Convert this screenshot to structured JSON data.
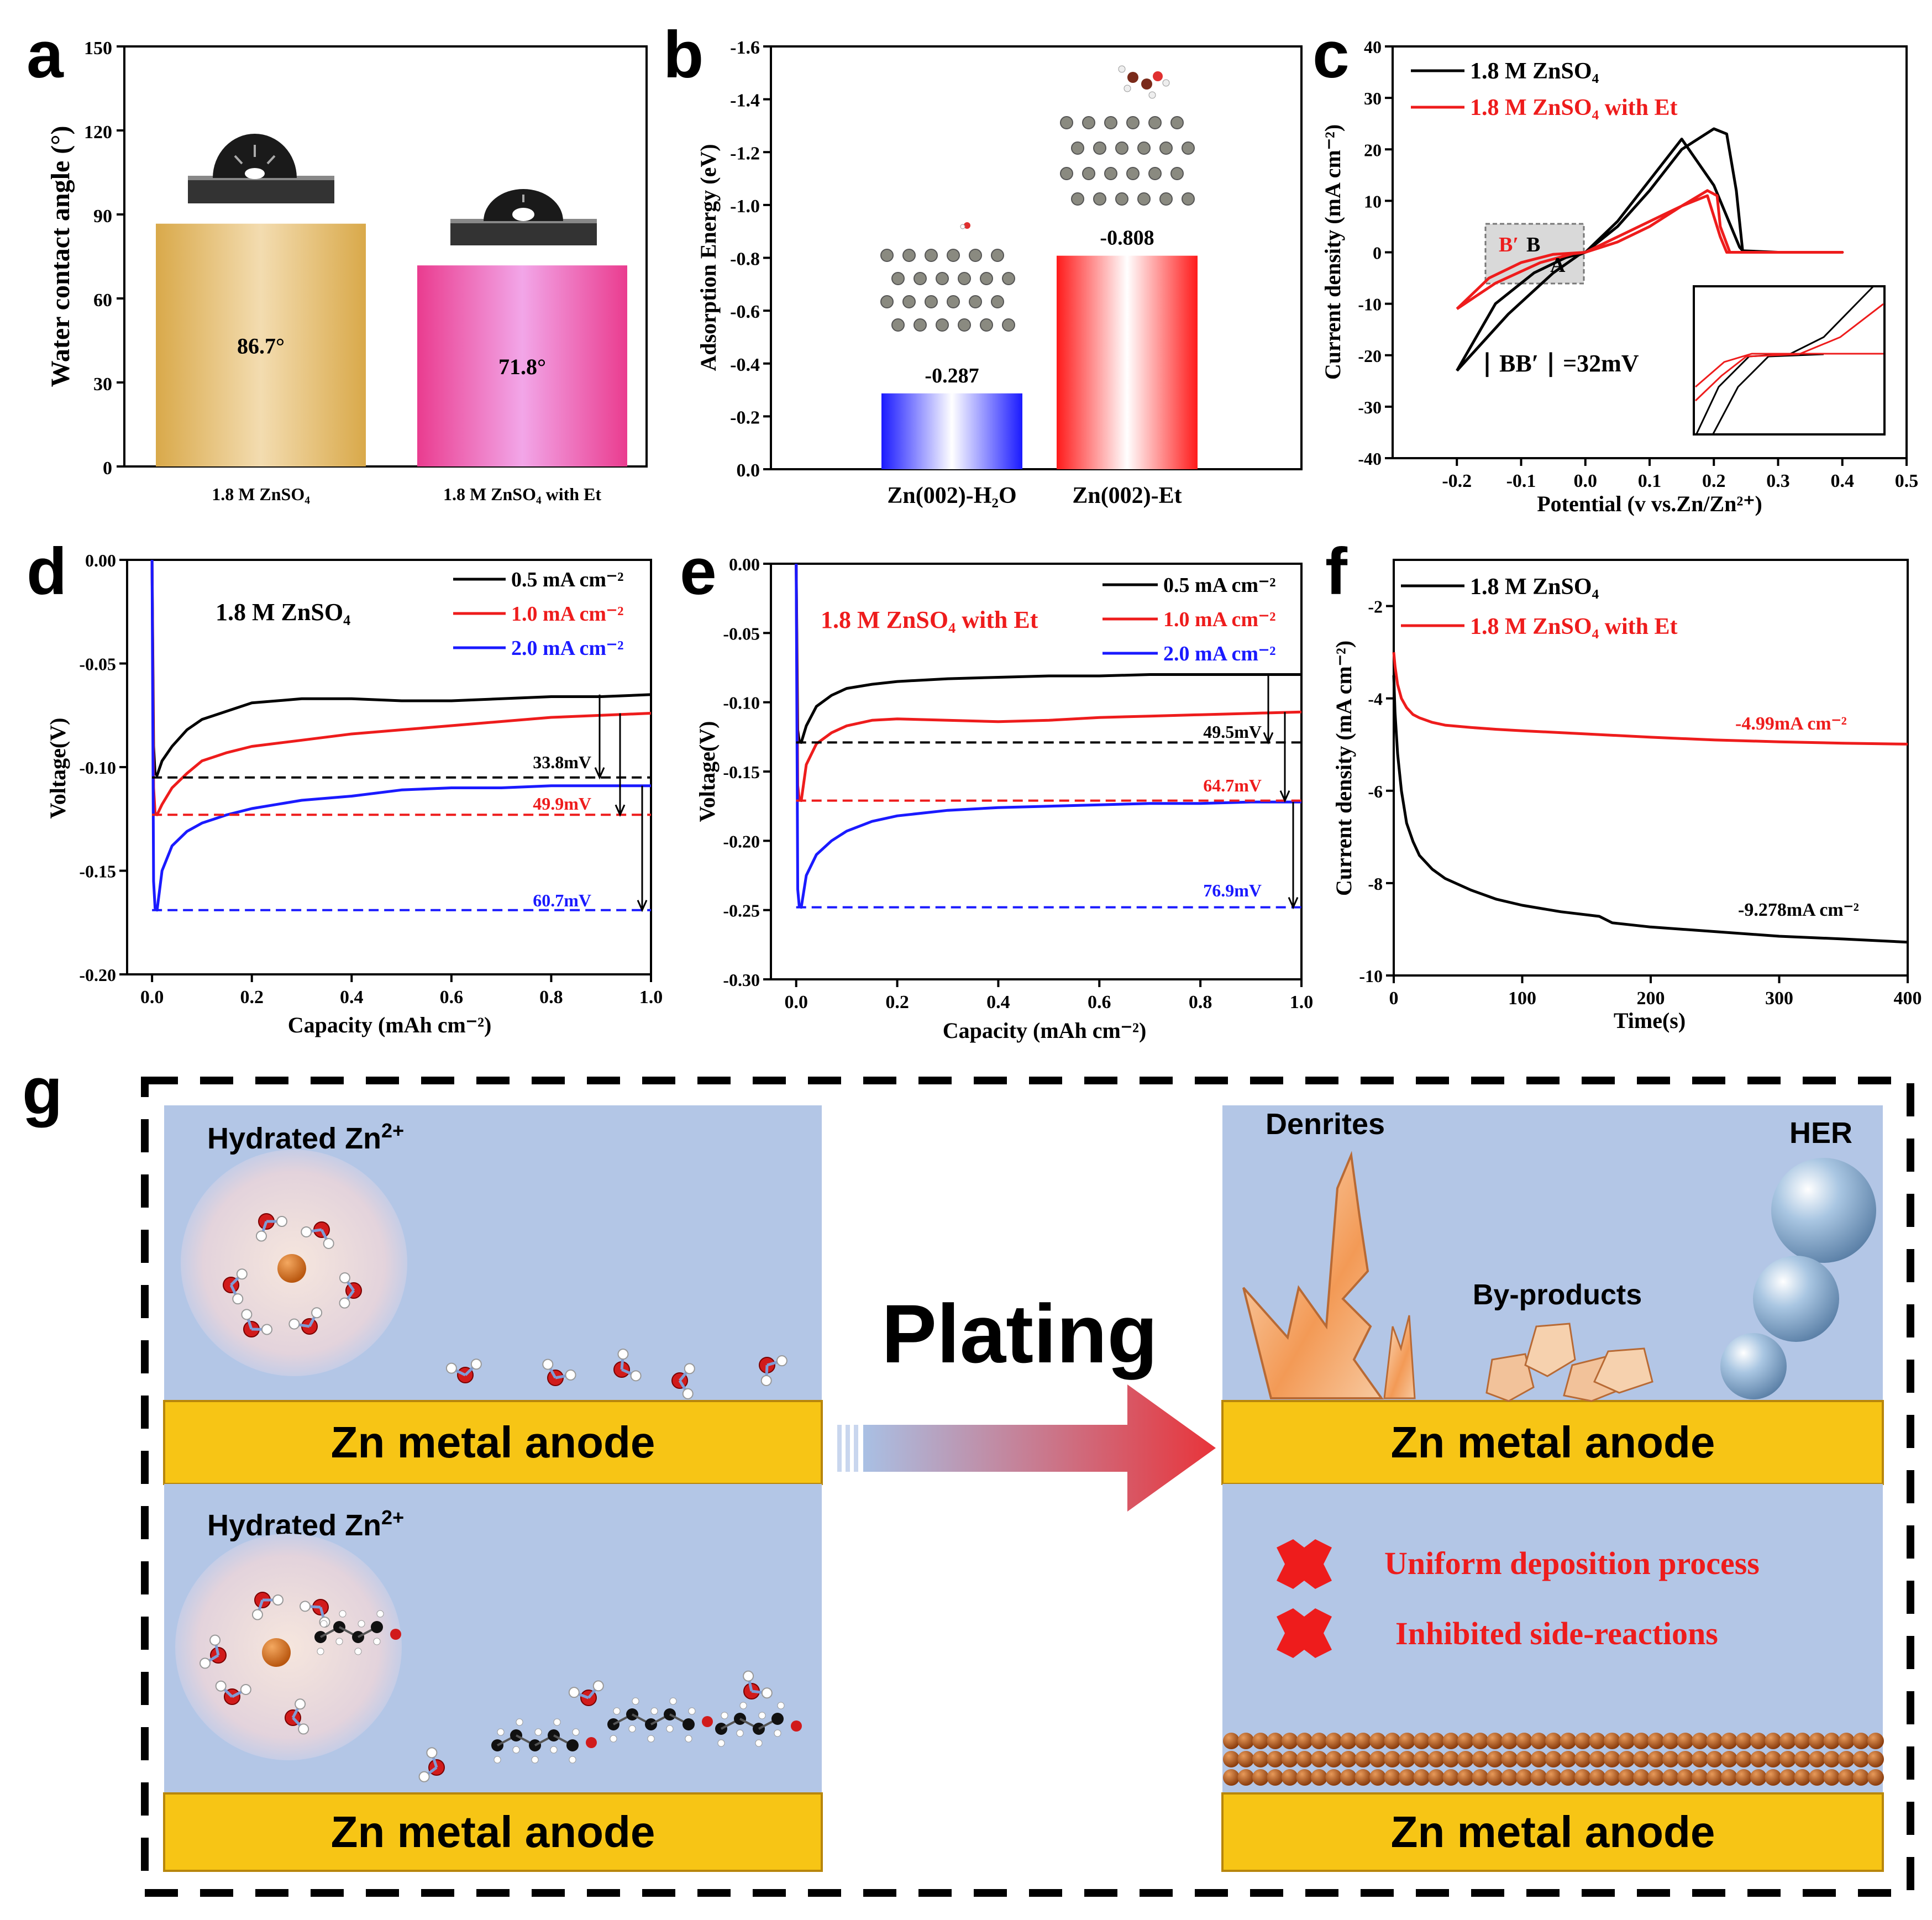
{
  "panel_letters": {
    "a": "a",
    "b": "b",
    "c": "c",
    "d": "d",
    "e": "e",
    "f": "f",
    "g": "g"
  },
  "colors": {
    "black": "#000000",
    "red": "#ee1c1c",
    "blue": "#1a1aff",
    "panel_bg": "#b3c6e6",
    "anode": "#f7c515",
    "gold": "#d9a94a",
    "pink": "#ea3c8f"
  },
  "chart_data": [
    {
      "id": "a",
      "type": "bar",
      "ylabel": "Water contact angle (°)",
      "ylim": [
        0,
        150
      ],
      "yticks": [
        0,
        30,
        60,
        90,
        120,
        150
      ],
      "categories": [
        "1.8 M ZnSO₄",
        "1.8 M ZnSO₄ with Et"
      ],
      "values": [
        86.7,
        71.8
      ],
      "value_labels": [
        "86.7°",
        "71.8°"
      ]
    },
    {
      "id": "b",
      "type": "bar",
      "ylabel": "Adsorption Energy (eV)",
      "ylim": [
        0,
        -1.6
      ],
      "yticks": [
        "0.0",
        "-0.2",
        "-0.4",
        "-0.6",
        "-0.8",
        "-1.0",
        "-1.2",
        "-1.4",
        "-1.6"
      ],
      "categories": [
        "Zn(002)-H₂O",
        "Zn(002)-Et"
      ],
      "values": [
        -0.287,
        -0.808
      ],
      "value_labels": [
        "-0.287",
        "-0.808"
      ]
    },
    {
      "id": "c",
      "type": "line",
      "xlabel": "Potential (v vs.Zn/Zn²⁺)",
      "ylabel": "Current density (mA cm⁻²)",
      "xlim": [
        -0.3,
        0.5
      ],
      "ylim": [
        -40,
        40
      ],
      "xticks": [
        "-0.2",
        "-0.1",
        "0.0",
        "0.1",
        "0.2",
        "0.3",
        "0.4",
        "0.5"
      ],
      "yticks": [
        "-40",
        "-30",
        "-20",
        "-10",
        "0",
        "10",
        "20",
        "30",
        "40"
      ],
      "annotation": "∣ BB′ ∣ =32mV",
      "point_labels": {
        "b_prime": "B′",
        "b": "B",
        "a": "A"
      },
      "series": [
        {
          "name": "1.8 M ZnSO₄",
          "color": "#000000",
          "x": [
            -0.2,
            -0.12,
            -0.05,
            -0.01,
            0.0,
            0.05,
            0.1,
            0.15,
            0.2,
            0.22,
            0.235,
            0.245,
            0.26,
            0.3,
            0.35,
            0.4,
            0.4,
            0.3,
            0.245,
            0.24,
            0.2,
            0.15,
            0.1,
            0.05,
            0.0,
            -0.03,
            -0.08,
            -0.14,
            -0.2
          ],
          "y": [
            -23,
            -12,
            -4,
            -0.5,
            0,
            5,
            12,
            20,
            24,
            23,
            12,
            0,
            0,
            0,
            0,
            0,
            0,
            0,
            0.3,
            1,
            13,
            22,
            14,
            6,
            0,
            -1,
            -4,
            -10,
            -23
          ]
        },
        {
          "name": "1.8 M ZnSO₄ with Et",
          "color": "#ee1c1c",
          "x": [
            -0.2,
            -0.14,
            -0.07,
            -0.02,
            0.0,
            0.05,
            0.1,
            0.15,
            0.19,
            0.205,
            0.21,
            0.225,
            0.3,
            0.4,
            0.4,
            0.3,
            0.22,
            0.21,
            0.19,
            0.15,
            0.1,
            0.05,
            0.0,
            -0.05,
            -0.1,
            -0.15,
            -0.2
          ],
          "y": [
            -11,
            -6,
            -2,
            -0.3,
            0,
            3,
            6,
            9,
            12,
            11,
            5,
            0,
            0,
            0,
            0,
            0,
            0,
            3,
            11,
            9,
            5,
            2,
            0,
            -0.4,
            -2,
            -5,
            -11
          ]
        }
      ]
    },
    {
      "id": "d",
      "type": "line",
      "xlabel": "Capacity (mAh cm⁻²)",
      "ylabel": "Voltage(V)",
      "xlim": [
        -0.05,
        1.0
      ],
      "ylim": [
        -0.2,
        0.0
      ],
      "xticks": [
        "0.0",
        "0.2",
        "0.4",
        "0.6",
        "0.8",
        "1.0"
      ],
      "yticks": [
        "0.00",
        "-0.05",
        "-0.10",
        "-0.15",
        "-0.20"
      ],
      "inset_label": "1.8 M ZnSO₄",
      "nucleation_labels": [
        "33.8mV",
        "49.9mV",
        "60.7mV"
      ],
      "nucleation_levels": [
        -0.105,
        -0.123,
        -0.169
      ],
      "series": [
        {
          "name": "0.5 mA cm⁻²",
          "color": "#000000",
          "x": [
            0.0,
            0.003,
            0.006,
            0.01,
            0.02,
            0.04,
            0.07,
            0.1,
            0.15,
            0.2,
            0.3,
            0.4,
            0.5,
            0.6,
            0.7,
            0.8,
            0.9,
            1.0
          ],
          "y": [
            0.0,
            -0.09,
            -0.103,
            -0.104,
            -0.097,
            -0.09,
            -0.082,
            -0.077,
            -0.073,
            -0.069,
            -0.067,
            -0.067,
            -0.068,
            -0.068,
            -0.067,
            -0.066,
            -0.066,
            -0.065
          ]
        },
        {
          "name": "1.0 mA cm⁻²",
          "color": "#ee1c1c",
          "x": [
            0.0,
            0.003,
            0.006,
            0.01,
            0.02,
            0.04,
            0.07,
            0.1,
            0.15,
            0.2,
            0.3,
            0.4,
            0.5,
            0.6,
            0.7,
            0.8,
            0.9,
            1.0
          ],
          "y": [
            0.0,
            -0.11,
            -0.122,
            -0.123,
            -0.118,
            -0.11,
            -0.103,
            -0.097,
            -0.093,
            -0.09,
            -0.087,
            -0.084,
            -0.082,
            -0.08,
            -0.078,
            -0.076,
            -0.075,
            -0.074
          ]
        },
        {
          "name": "2.0 mA cm⁻²",
          "color": "#1a1aff",
          "x": [
            0.0,
            0.003,
            0.006,
            0.01,
            0.02,
            0.04,
            0.07,
            0.1,
            0.15,
            0.2,
            0.3,
            0.4,
            0.5,
            0.6,
            0.7,
            0.8,
            0.9,
            1.0
          ],
          "y": [
            0.0,
            -0.155,
            -0.168,
            -0.169,
            -0.15,
            -0.138,
            -0.131,
            -0.127,
            -0.123,
            -0.12,
            -0.116,
            -0.114,
            -0.111,
            -0.11,
            -0.11,
            -0.109,
            -0.109,
            -0.109
          ]
        }
      ]
    },
    {
      "id": "e",
      "type": "line",
      "xlabel": "Capacity (mAh cm⁻²)",
      "ylabel": "Voltage(V)",
      "xlim": [
        -0.05,
        1.0
      ],
      "ylim": [
        -0.3,
        0.0
      ],
      "xticks": [
        "0.0",
        "0.2",
        "0.4",
        "0.6",
        "0.8",
        "1.0"
      ],
      "yticks": [
        "0.00",
        "-0.05",
        "-0.10",
        "-0.15",
        "-0.20",
        "-0.25",
        "-0.30"
      ],
      "inset_label": "1.8 M ZnSO₄ with Et",
      "nucleation_labels": [
        "49.5mV",
        "64.7mV",
        "76.9mV"
      ],
      "nucleation_levels": [
        -0.129,
        -0.171,
        -0.248
      ],
      "series": [
        {
          "name": "0.5 mA cm⁻²",
          "color": "#000000",
          "x": [
            0.0,
            0.003,
            0.006,
            0.01,
            0.02,
            0.04,
            0.07,
            0.1,
            0.15,
            0.2,
            0.3,
            0.4,
            0.5,
            0.6,
            0.7,
            0.8,
            0.9,
            1.0
          ],
          "y": [
            0.0,
            -0.12,
            -0.128,
            -0.129,
            -0.117,
            -0.103,
            -0.095,
            -0.09,
            -0.087,
            -0.085,
            -0.083,
            -0.082,
            -0.081,
            -0.081,
            -0.08,
            -0.08,
            -0.08,
            -0.08
          ]
        },
        {
          "name": "1.0 mA cm⁻²",
          "color": "#ee1c1c",
          "x": [
            0.0,
            0.003,
            0.006,
            0.01,
            0.02,
            0.04,
            0.07,
            0.1,
            0.15,
            0.2,
            0.3,
            0.4,
            0.5,
            0.6,
            0.7,
            0.8,
            0.9,
            1.0
          ],
          "y": [
            0.0,
            -0.16,
            -0.17,
            -0.171,
            -0.145,
            -0.13,
            -0.122,
            -0.117,
            -0.113,
            -0.112,
            -0.113,
            -0.114,
            -0.113,
            -0.111,
            -0.11,
            -0.109,
            -0.108,
            -0.107
          ]
        },
        {
          "name": "2.0 mA cm⁻²",
          "color": "#1a1aff",
          "x": [
            0.0,
            0.003,
            0.006,
            0.01,
            0.02,
            0.04,
            0.07,
            0.1,
            0.15,
            0.2,
            0.3,
            0.4,
            0.5,
            0.6,
            0.7,
            0.8,
            0.9,
            1.0
          ],
          "y": [
            0.0,
            -0.235,
            -0.247,
            -0.248,
            -0.225,
            -0.21,
            -0.2,
            -0.193,
            -0.186,
            -0.182,
            -0.178,
            -0.176,
            -0.175,
            -0.174,
            -0.173,
            -0.173,
            -0.172,
            -0.172
          ]
        }
      ]
    },
    {
      "id": "f",
      "type": "line",
      "xlabel": "Time(s)",
      "ylabel": "Current density (mA cm⁻²)",
      "xlim": [
        0,
        400
      ],
      "ylim": [
        -10,
        -1
      ],
      "xticks": [
        "0",
        "100",
        "200",
        "300",
        "400"
      ],
      "yticks": [
        "-2",
        "-4",
        "-6",
        "-8",
        "-10"
      ],
      "end_labels": [
        "-4.99mA cm⁻²",
        "-9.278mA cm⁻²"
      ],
      "series": [
        {
          "name": "1.8 M ZnSO₄",
          "color": "#000000",
          "x": [
            0,
            1,
            3,
            6,
            10,
            15,
            20,
            30,
            40,
            60,
            80,
            100,
            130,
            160,
            170,
            200,
            250,
            300,
            350,
            400
          ],
          "y": [
            -3.5,
            -4.3,
            -5.2,
            -6.0,
            -6.7,
            -7.1,
            -7.4,
            -7.7,
            -7.9,
            -8.15,
            -8.35,
            -8.48,
            -8.62,
            -8.72,
            -8.86,
            -8.95,
            -9.05,
            -9.15,
            -9.21,
            -9.278
          ]
        },
        {
          "name": "1.8 M ZnSO₄ with Et",
          "color": "#ee1c1c",
          "x": [
            0,
            1,
            3,
            6,
            10,
            15,
            20,
            30,
            40,
            60,
            80,
            100,
            150,
            200,
            250,
            300,
            350,
            400
          ],
          "y": [
            -3.0,
            -3.3,
            -3.7,
            -4.0,
            -4.2,
            -4.35,
            -4.42,
            -4.52,
            -4.58,
            -4.63,
            -4.67,
            -4.7,
            -4.77,
            -4.84,
            -4.9,
            -4.94,
            -4.97,
            -4.99
          ]
        }
      ]
    }
  ],
  "schematic": {
    "hydrated_label": "Hydrated Zn",
    "hydrated_sup": "2+",
    "anode_label": "Zn metal anode",
    "plating_label": "Plating",
    "dendrites_label": "Denrites",
    "her_label": "HER",
    "byproducts_label": "By-products",
    "uniform_label": "Uniform deposition process",
    "inhibited_label": "Inhibited side-reactions"
  }
}
